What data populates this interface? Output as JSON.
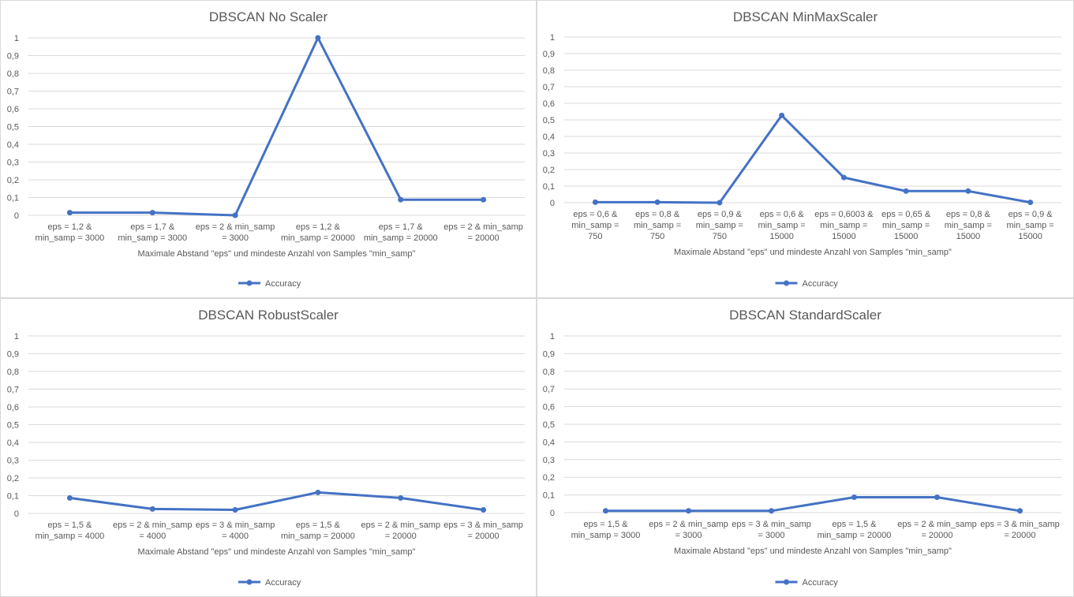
{
  "chart_data": [
    {
      "type": "line",
      "title": "DBSCAN No Scaler",
      "xlabel": "Maximale Abstand \"eps\" und mindeste Anzahl von Samples \"min_samp\"",
      "ylabel": "",
      "ylim": [
        0,
        1
      ],
      "yticks": [
        "0",
        "0,1",
        "0,2",
        "0,3",
        "0,4",
        "0,5",
        "0,6",
        "0,7",
        "0,8",
        "0,9",
        "1"
      ],
      "grid": true,
      "legend_position": "bottom",
      "categories": [
        [
          "eps = 1,2 &",
          "min_samp = 3000"
        ],
        [
          "eps = 1,7 &",
          "min_samp = 3000"
        ],
        [
          "eps = 2 & min_samp",
          "= 3000"
        ],
        [
          "eps = 1,2 &",
          "min_samp = 20000"
        ],
        [
          "eps = 1,7 &",
          "min_samp = 20000"
        ],
        [
          "eps = 2 & min_samp",
          "= 20000"
        ]
      ],
      "series": [
        {
          "name": "Accuracy",
          "color": "#4472c4",
          "values": [
            0.015,
            0.015,
            0.0,
            1.0,
            0.088,
            0.088
          ]
        }
      ]
    },
    {
      "type": "line",
      "title": "DBSCAN MinMaxScaler",
      "xlabel": "Maximale Abstand \"eps\" und mindeste Anzahl von Samples \"min_samp\"",
      "ylabel": "",
      "ylim": [
        0,
        1
      ],
      "yticks": [
        "0",
        "0,1",
        "0,2",
        "0,3",
        "0,4",
        "0,5",
        "0,6",
        "0,7",
        "0,8",
        "0,9",
        "1"
      ],
      "grid": true,
      "legend_position": "bottom",
      "categories": [
        [
          "eps = 0,6 &",
          "min_samp =",
          "750"
        ],
        [
          "eps = 0,8 &",
          "min_samp =",
          "750"
        ],
        [
          "eps = 0,9 &",
          "min_samp =",
          "750"
        ],
        [
          "eps = 0,6 &",
          "min_samp =",
          "15000"
        ],
        [
          "eps = 0,6003 &",
          "min_samp =",
          "15000"
        ],
        [
          "eps = 0,65 &",
          "min_samp =",
          "15000"
        ],
        [
          "eps = 0,8 &",
          "min_samp =",
          "15000"
        ],
        [
          "eps = 0,9 &",
          "min_samp =",
          "15000"
        ]
      ],
      "series": [
        {
          "name": "Accuracy",
          "color": "#4472c4",
          "values": [
            0.003,
            0.003,
            0.0,
            0.527,
            0.152,
            0.07,
            0.07,
            0.002
          ]
        }
      ]
    },
    {
      "type": "line",
      "title": "DBSCAN RobustScaler",
      "xlabel": "Maximale Abstand \"eps\" und mindeste Anzahl von Samples \"min_samp\"",
      "ylabel": "",
      "ylim": [
        0,
        1
      ],
      "yticks": [
        "0",
        "0,1",
        "0,2",
        "0,3",
        "0,4",
        "0,5",
        "0,6",
        "0,7",
        "0,8",
        "0,9",
        "1"
      ],
      "grid": true,
      "legend_position": "bottom",
      "categories": [
        [
          "eps = 1,5 &",
          "min_samp = 4000"
        ],
        [
          "eps = 2 & min_samp",
          "= 4000"
        ],
        [
          "eps = 3 & min_samp",
          "= 4000"
        ],
        [
          "eps = 1,5 &",
          "min_samp = 20000"
        ],
        [
          "eps = 2 & min_samp",
          "= 20000"
        ],
        [
          "eps = 3 & min_samp",
          "= 20000"
        ]
      ],
      "series": [
        {
          "name": "Accuracy",
          "color": "#4472c4",
          "values": [
            0.087,
            0.025,
            0.02,
            0.118,
            0.087,
            0.02
          ]
        }
      ]
    },
    {
      "type": "line",
      "title": "DBSCAN StandardScaler",
      "xlabel": "Maximale Abstand \"eps\" und mindeste Anzahl von Samples \"min_samp\"",
      "ylabel": "",
      "ylim": [
        0,
        1
      ],
      "yticks": [
        "0",
        "0,1",
        "0,2",
        "0,3",
        "0,4",
        "0,5",
        "0,6",
        "0,7",
        "0,8",
        "0,9",
        "1"
      ],
      "grid": true,
      "legend_position": "bottom",
      "categories": [
        [
          "eps = 1,5 &",
          "min_samp = 3000"
        ],
        [
          "eps = 2 & min_samp",
          "= 3000"
        ],
        [
          "eps = 3 & min_samp",
          "= 3000"
        ],
        [
          "eps = 1,5 &",
          "min_samp = 20000"
        ],
        [
          "eps = 2 & min_samp",
          "= 20000"
        ],
        [
          "eps = 3 & min_samp",
          "= 20000"
        ]
      ],
      "series": [
        {
          "name": "Accuracy",
          "color": "#4472c4",
          "values": [
            0.01,
            0.01,
            0.01,
            0.087,
            0.087,
            0.01
          ]
        }
      ]
    }
  ]
}
